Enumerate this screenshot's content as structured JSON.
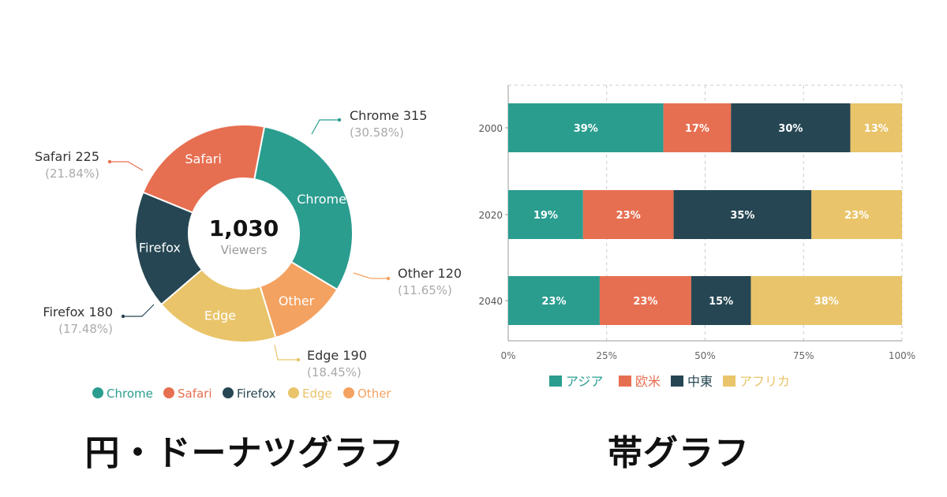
{
  "captions": {
    "left": "円・ドーナツグラフ",
    "right": "帯グラフ"
  },
  "colors": {
    "teal": "#2a9d8f",
    "orange": "#e76f51",
    "navy": "#264653",
    "yellow": "#e9c46a",
    "peach": "#f4a261",
    "grid": "#cccccc",
    "muted": "#aaaaaa"
  },
  "chart_data": [
    {
      "type": "pie",
      "variant": "donut",
      "center_value": "1,030",
      "center_label": "Viewers",
      "legend_position": "bottom",
      "slices": [
        {
          "name": "Chrome",
          "value": 315,
          "percent": "30.58%",
          "color": "#2a9d8f",
          "callout": "Chrome 315"
        },
        {
          "name": "Other",
          "value": 120,
          "percent": "11.65%",
          "color": "#f4a261",
          "callout": "Other 120"
        },
        {
          "name": "Edge",
          "value": 190,
          "percent": "18.45%",
          "color": "#e9c46a",
          "callout": "Edge 190"
        },
        {
          "name": "Firefox",
          "value": 180,
          "percent": "17.48%",
          "color": "#264653",
          "callout": "Firefox 180"
        },
        {
          "name": "Safari",
          "value": 225,
          "percent": "21.84%",
          "color": "#e76f51",
          "callout": "Safari 225"
        }
      ],
      "legend": [
        "Chrome",
        "Safari",
        "Firefox",
        "Edge",
        "Other"
      ]
    },
    {
      "type": "bar",
      "variant": "stacked-100-horizontal",
      "categories": [
        "2000",
        "2020",
        "2040"
      ],
      "series": [
        {
          "name": "アジア",
          "color": "#2a9d8f",
          "values": [
            39,
            19,
            23
          ]
        },
        {
          "name": "欧米",
          "color": "#e76f51",
          "values": [
            17,
            23,
            23
          ]
        },
        {
          "name": "中東",
          "color": "#264653",
          "values": [
            30,
            35,
            15
          ]
        },
        {
          "name": "アフリカ",
          "color": "#e9c46a",
          "values": [
            13,
            23,
            38
          ]
        }
      ],
      "xlim": [
        0,
        100
      ],
      "xticks": [
        "0%",
        "25%",
        "50%",
        "75%",
        "100%"
      ],
      "grid": true,
      "legend_position": "bottom"
    }
  ]
}
